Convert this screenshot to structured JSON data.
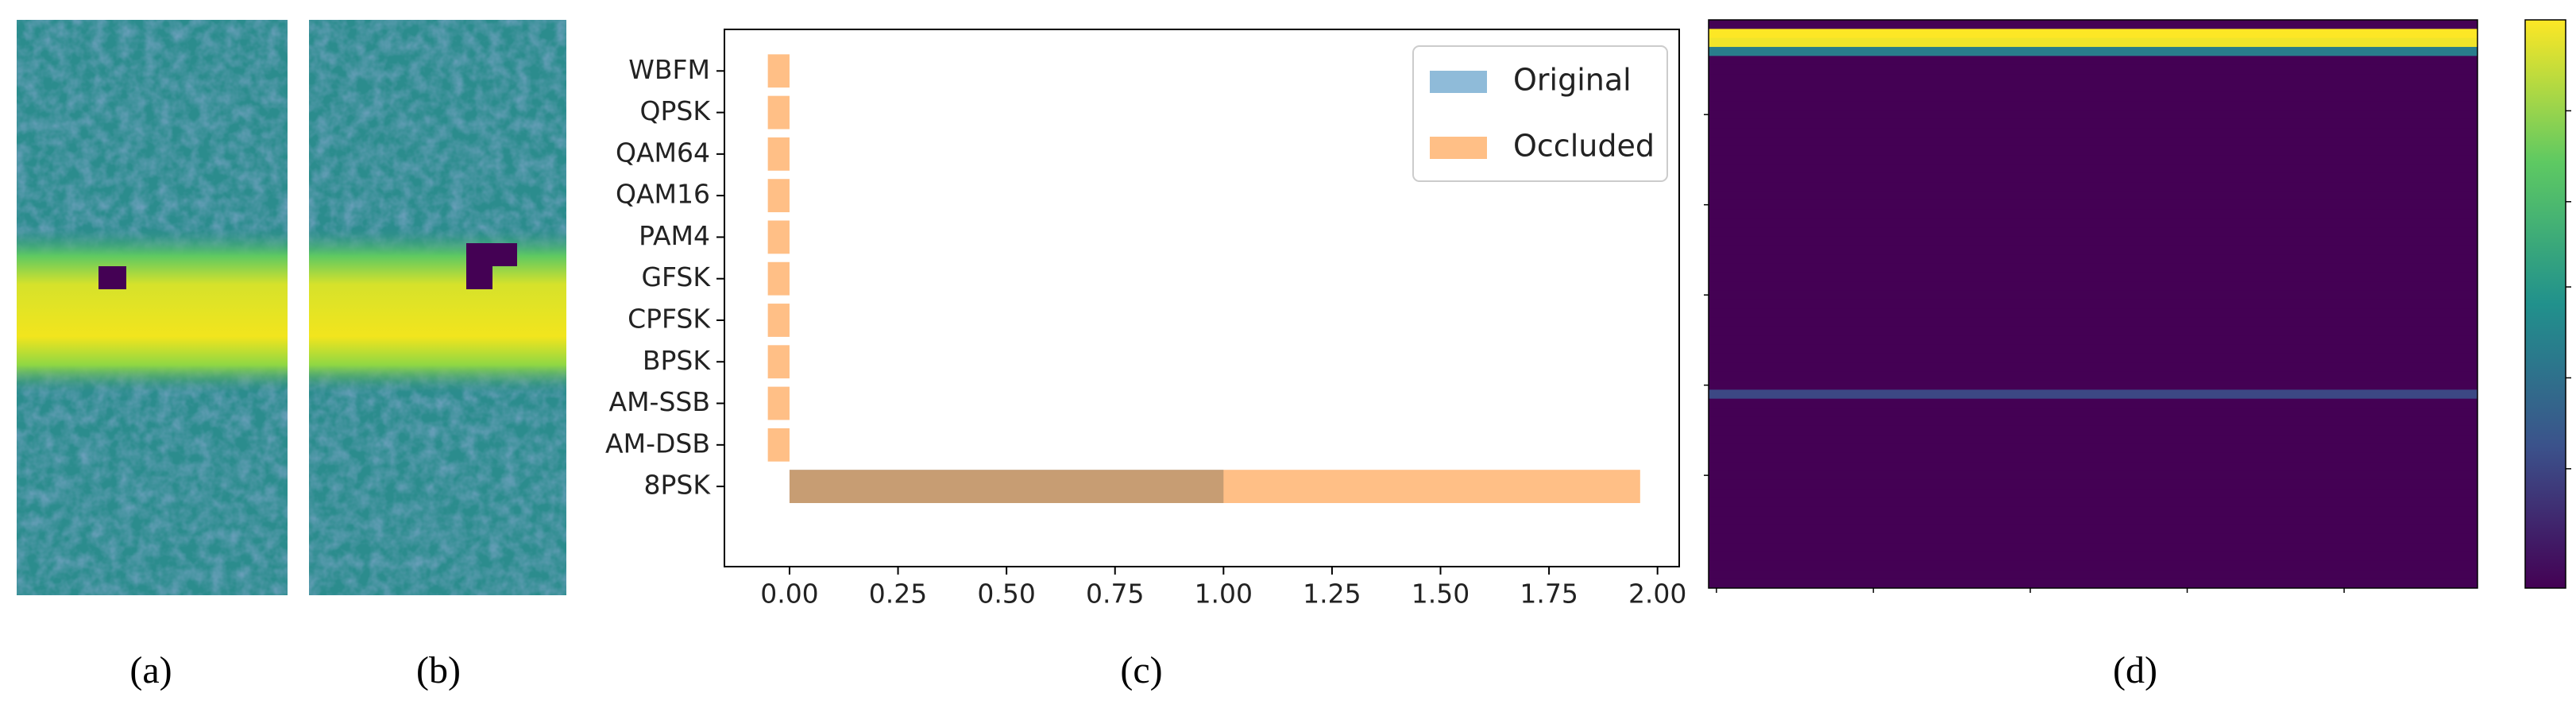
{
  "panel_labels": [
    "(a)",
    "(b)",
    "(c)",
    "(d)"
  ],
  "chart_data": [
    {
      "type": "barh",
      "categories": [
        "8PSK",
        "AM-DSB",
        "AM-SSB",
        "BPSK",
        "CPFSK",
        "GFSK",
        "PAM4",
        "QAM16",
        "QAM64",
        "QPSK",
        "WBFM"
      ],
      "series": [
        {
          "name": "Original",
          "color": "#1f77b4",
          "values": [
            1.0,
            0,
            0,
            0,
            0,
            0,
            0,
            0,
            0,
            0,
            0
          ]
        },
        {
          "name": "Occluded",
          "color": "#ff7f0e",
          "values": [
            1.96,
            -0.05,
            -0.05,
            -0.05,
            -0.05,
            -0.05,
            -0.05,
            -0.05,
            -0.05,
            -0.05,
            -0.05
          ]
        }
      ],
      "opacity": 0.5,
      "xlim": [
        -0.15,
        2.05
      ],
      "xticks": [
        {
          "value": 0,
          "label": "0.00"
        },
        {
          "value": 0.25,
          "label": "0.25"
        },
        {
          "value": 0.5,
          "label": "0.50"
        },
        {
          "value": 0.75,
          "label": "0.75"
        },
        {
          "value": 1,
          "label": "1.00"
        },
        {
          "value": 1.25,
          "label": "1.25"
        },
        {
          "value": 1.5,
          "label": "1.50"
        },
        {
          "value": 1.75,
          "label": "1.75"
        },
        {
          "value": 2,
          "label": "2.00"
        }
      ],
      "legend": "upper right"
    },
    {
      "type": "heatmap",
      "colormap": "viridis",
      "rows": [
        0,
        1.0,
        0.98,
        0.42,
        0,
        0,
        0,
        0,
        0,
        0,
        0,
        0,
        0,
        0,
        0,
        0,
        0,
        0,
        0,
        0,
        0,
        0,
        0,
        0,
        0,
        0,
        0,
        0,
        0,
        0,
        0,
        0,
        0,
        0,
        0,
        0,
        0,
        0,
        0,
        0,
        0,
        0.22,
        0,
        0,
        0,
        0,
        0,
        0,
        0,
        0,
        0,
        0,
        0,
        0,
        0,
        0,
        0,
        0,
        0,
        0,
        0,
        0,
        0
      ],
      "xlim": [
        -0.5,
        48.5
      ],
      "ylim": [
        -0.5,
        62.5
      ],
      "xticks": [
        0,
        10,
        20,
        30,
        40
      ],
      "yticks": [
        10,
        20,
        30,
        40,
        50
      ],
      "clim": [
        0,
        1
      ],
      "cticks": [
        0.21,
        0.37,
        0.53,
        0.68,
        0.84
      ]
    }
  ]
}
